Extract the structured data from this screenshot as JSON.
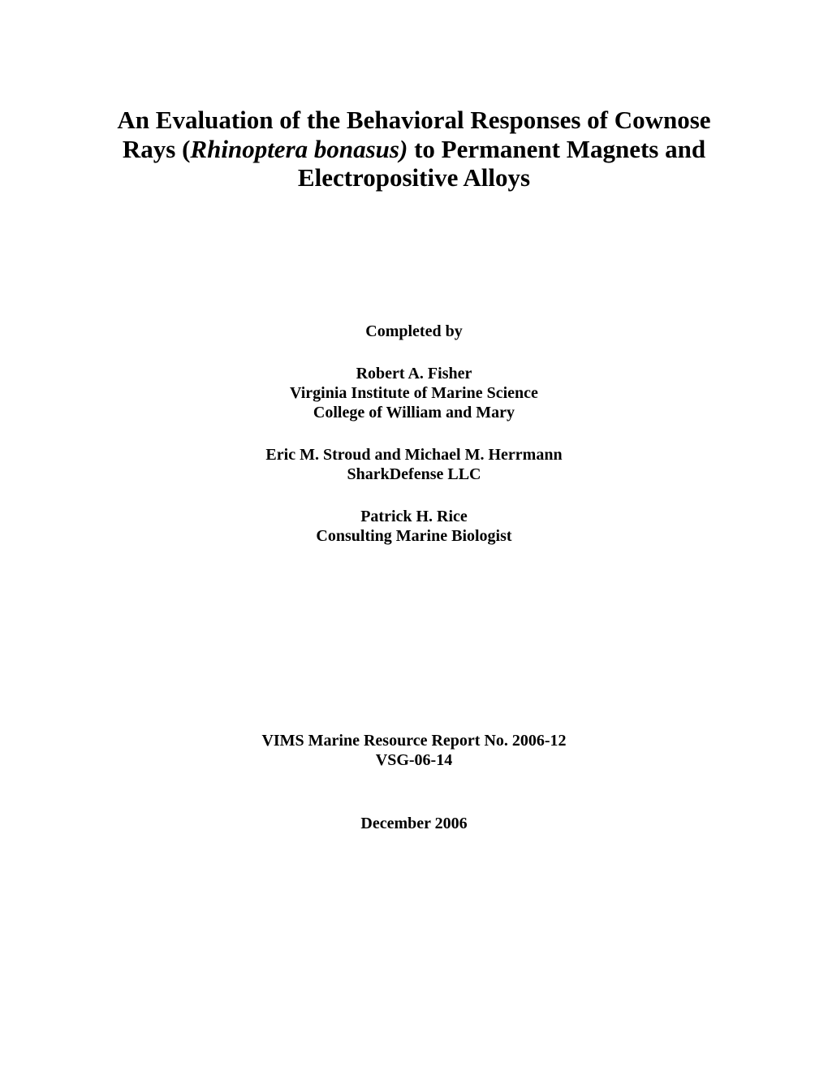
{
  "title": {
    "part1": "An Evaluation of the Behavioral Responses of Cownose Rays (",
    "species": "Rhinoptera bonasus)",
    "part2": " to Permanent Magnets and Electropositive Alloys"
  },
  "completed_by_label": "Completed by",
  "authors": [
    {
      "name": "Robert A. Fisher",
      "affiliation1": "Virginia Institute of Marine Science",
      "affiliation2": "College of William and Mary"
    },
    {
      "name": "Eric M. Stroud and Michael M. Herrmann",
      "affiliation1": "SharkDefense LLC",
      "affiliation2": ""
    },
    {
      "name": "Patrick H. Rice",
      "affiliation1": "Consulting Marine Biologist",
      "affiliation2": ""
    }
  ],
  "report": {
    "line1": "VIMS Marine Resource Report No. 2006-12",
    "line2": "VSG-06-14"
  },
  "date": "December 2006"
}
